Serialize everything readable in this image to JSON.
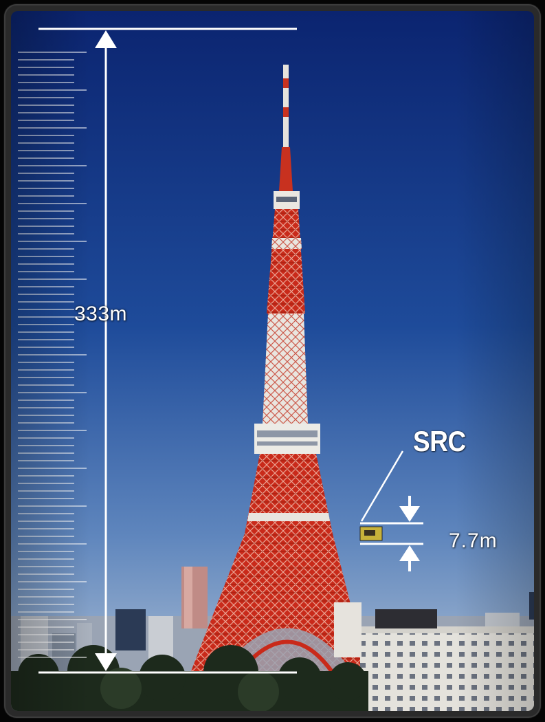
{
  "tower": {
    "height_label": "333m"
  },
  "src": {
    "name_label": "SRC",
    "size_label": "7.7m"
  },
  "colors": {
    "sky_top": "#0c2a78",
    "sky_bottom": "#9fb4cf",
    "tower_red": "#d8321f",
    "tower_white": "#ece8e2",
    "annotation": "#ffffff",
    "src_marker": "#c8b23a"
  },
  "icons": {
    "height_arrow": "double-headed-vertical-arrow",
    "src_arrows": "converging-arrows"
  }
}
